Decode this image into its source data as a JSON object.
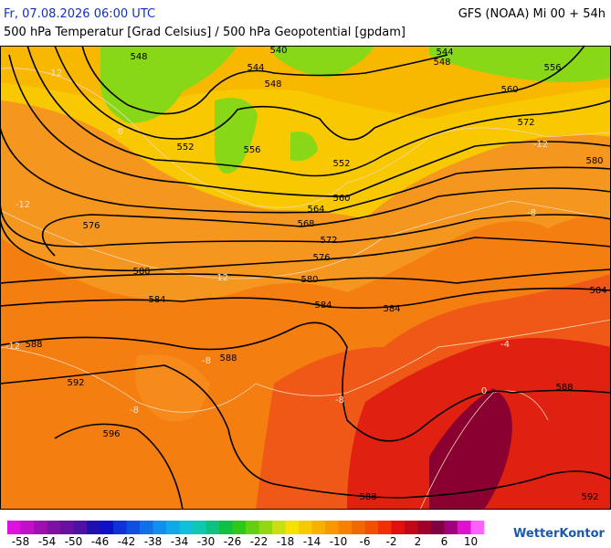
{
  "header": {
    "left": "Fr, 07.08.2026 06:00 UTC",
    "right": "GFS (NOAA) Mi 00 + 54h",
    "subtitle": "500 hPa Temperatur [Grad Celsius] / 500 hPa Geopotential [gpdam]"
  },
  "map": {
    "contour_labels": [
      "540",
      "544",
      "548",
      "548",
      "544",
      "548",
      "556",
      "560",
      "572",
      "552",
      "556",
      "552",
      "580",
      "560",
      "564",
      "568",
      "572",
      "576",
      "576",
      "580",
      "580",
      "584",
      "584",
      "584",
      "584",
      "588",
      "588",
      "592",
      "588",
      "596",
      "588",
      "592"
    ],
    "isotherm_labels": [
      "-12",
      "-12",
      "-12",
      "-12",
      "-12",
      "-8",
      "-8",
      "-8",
      "-8",
      "-8",
      "-4",
      "0"
    ]
  },
  "colorbar": {
    "ticks": [
      -58,
      -54,
      -50,
      -46,
      -42,
      -38,
      -34,
      -30,
      -26,
      -22,
      -18,
      -14,
      -10,
      -6,
      -2,
      2,
      6,
      10
    ],
    "colors": [
      "#e010e0",
      "#c010c8",
      "#a010b0",
      "#8010a0",
      "#6a10a0",
      "#5010a8",
      "#2010b0",
      "#1010c8",
      "#1030d8",
      "#1050e0",
      "#1070e8",
      "#1090ec",
      "#10a8e8",
      "#10c0d8",
      "#10c8b0",
      "#10c080",
      "#10c040",
      "#30c818",
      "#60d010",
      "#90d810",
      "#c8e010",
      "#f8e000",
      "#f8c800",
      "#f8b000",
      "#f89800",
      "#f88000",
      "#f06800",
      "#f05000",
      "#f03000",
      "#e01010",
      "#c00818",
      "#a00028",
      "#800040",
      "#a00080",
      "#e010d0",
      "#ff60ff"
    ]
  },
  "logo": "WetterKontor"
}
